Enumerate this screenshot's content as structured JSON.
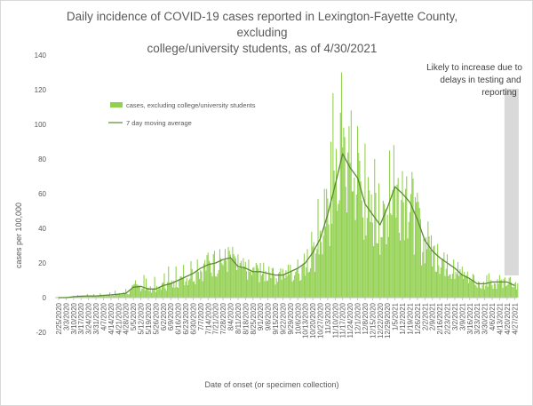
{
  "chart_data": {
    "type": "bar",
    "title_lines": [
      "Daily incidence of COVID-19 cases reported in Lexington-Fayette County, excluding",
      "college/university students, as of 4/30/2021"
    ],
    "xlabel": "Date of onset (or specimen collection)",
    "ylabel": "cases per 100,000",
    "ylim": [
      -20,
      140
    ],
    "yticks": [
      -20,
      0,
      20,
      40,
      60,
      80,
      100,
      120,
      140
    ],
    "x_tick_labels": [
      "2/25/2020",
      "3/3/2020",
      "3/10/2020",
      "3/17/2020",
      "3/24/2020",
      "3/31/2020",
      "4/7/2020",
      "4/14/2020",
      "4/21/2020",
      "4/28/2020",
      "5/5/2020",
      "5/12/2020",
      "5/19/2020",
      "5/26/2020",
      "6/2/2020",
      "6/9/2020",
      "6/16/2020",
      "6/23/2020",
      "6/30/2020",
      "7/7/2020",
      "7/14/2020",
      "7/21/2020",
      "7/28/2020",
      "8/4/2020",
      "8/11/2020",
      "8/18/2020",
      "8/25/2020",
      "9/1/2020",
      "9/8/2020",
      "9/15/2020",
      "9/22/2020",
      "9/29/2020",
      "10/6/2020",
      "10/13/2020",
      "10/20/2020",
      "10/27/2020",
      "11/3/2020",
      "11/10/2020",
      "11/17/2020",
      "11/24/2020",
      "12/1/2020",
      "12/8/2020",
      "12/15/2020",
      "12/22/2020",
      "12/29/2020",
      "1/5/2021",
      "1/12/2021",
      "1/19/2021",
      "1/26/2021",
      "2/2/2021",
      "2/9/2021",
      "2/16/2021",
      "2/23/2021",
      "3/2/2021",
      "3/9/2021",
      "3/16/2021",
      "3/23/2021",
      "3/30/2021",
      "4/6/2021",
      "4/13/2021",
      "4/20/2021",
      "4/27/2021"
    ],
    "series": [
      {
        "name": "cases, excluding college/university students",
        "kind": "bar",
        "color": "#92d050",
        "weekly_average_values": [
          0,
          0,
          0.5,
          0.8,
          1,
          1,
          1.3,
          1.6,
          2,
          2.5,
          6,
          6.5,
          5,
          5,
          7,
          8,
          10,
          12,
          14,
          17,
          19,
          20,
          22,
          23,
          18,
          17,
          15,
          15,
          14,
          13,
          13,
          15,
          17,
          20,
          26,
          34,
          48,
          65,
          83,
          75,
          69,
          54,
          48,
          42,
          52,
          64,
          60,
          55,
          45,
          33,
          27,
          23,
          20,
          17,
          13,
          11,
          8,
          8,
          9,
          9,
          9,
          7
        ],
        "peak_values": [
          0.5,
          0.5,
          1,
          1.5,
          2,
          2,
          2.5,
          3,
          4,
          5,
          10,
          13,
          11,
          12,
          14,
          18,
          18,
          19,
          21,
          22,
          26,
          27,
          28,
          27,
          25,
          22,
          20,
          20,
          18,
          17,
          17,
          19,
          22,
          28,
          38,
          57,
          90,
          118,
          130,
          108,
          99,
          89,
          80,
          66,
          85,
          88,
          73,
          70,
          58,
          44,
          36,
          31,
          25,
          22,
          18,
          15,
          13,
          13,
          14,
          13,
          12,
          9
        ]
      },
      {
        "name": "7 day moving average",
        "kind": "line",
        "color": "#5a8a32",
        "values": [
          0,
          0,
          0.5,
          0.8,
          1,
          1,
          1.3,
          1.6,
          2,
          2.5,
          6,
          6.5,
          5,
          5,
          7,
          8,
          10,
          12,
          14,
          17,
          19,
          20,
          22,
          23,
          18,
          17,
          15,
          15,
          14,
          13,
          13,
          15,
          17,
          20,
          26,
          34,
          48,
          65,
          83,
          75,
          69,
          54,
          48,
          42,
          52,
          64,
          60,
          55,
          45,
          33,
          27,
          23,
          20,
          17,
          13,
          11,
          8,
          8,
          9,
          9,
          9,
          7
        ]
      }
    ],
    "legend_position": "upper-left inside plot",
    "grid": false,
    "shaded_region": {
      "from": "4/20/2021",
      "to": "4/30/2021",
      "color": "#d9d9d9",
      "annotation_lines": [
        "Likely to increase due to",
        "delays in testing and",
        "reporting"
      ]
    }
  }
}
